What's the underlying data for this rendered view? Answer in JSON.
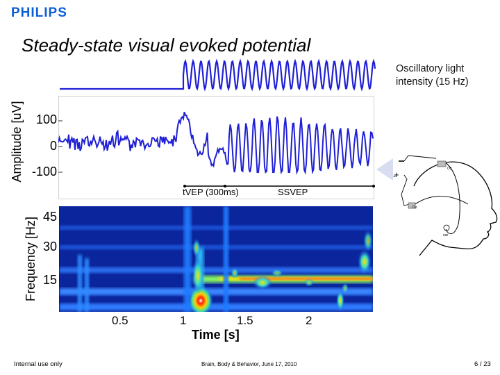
{
  "header": {
    "logo": "PHILIPS",
    "title": "Steady-state visual evoked potential"
  },
  "stimulus": {
    "label_line1": "Oscillatory light",
    "label_line2": "intensity (15 Hz)"
  },
  "amplitude_plot": {
    "ylabel": "Amplitude [uV]",
    "yticks": [
      "100",
      "0",
      "-100"
    ],
    "trace_color": "#1f1fd6"
  },
  "annotations": {
    "tvep": "tVEP (300ms)",
    "ssvep": "SSVEP"
  },
  "electrode": {
    "minus": "-",
    "plus": "+",
    "label_top": "Oz",
    "label_mid": "Oz",
    "label_ear": "ear"
  },
  "spectrogram": {
    "ylabel": "Frequency [Hz]",
    "yticks": [
      "45",
      "30",
      "15"
    ],
    "xticks": [
      "0.5",
      "1",
      "1.5",
      "2"
    ],
    "xlabel": "Time [s]"
  },
  "footer": {
    "left": "Internal use only",
    "center": "Brain, Body & Behavior, June 17, 2010",
    "right": "6 / 23"
  }
}
